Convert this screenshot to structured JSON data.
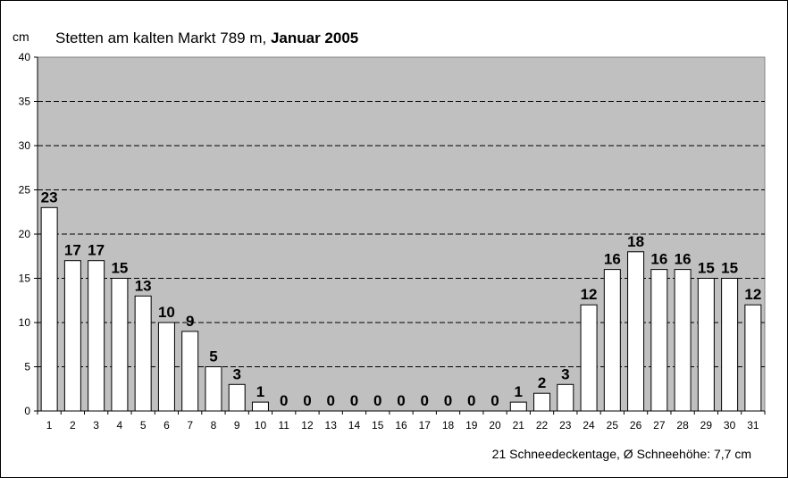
{
  "chart_data": {
    "type": "bar",
    "title": "Stetten am kalten Markt 789 m, ",
    "title_bold": "Januar 2005",
    "ylabel": "cm",
    "xlabel": "",
    "ylim": [
      0,
      40
    ],
    "yticks": [
      0,
      5,
      10,
      15,
      20,
      25,
      30,
      35,
      40
    ],
    "grid": "horizontal dashed",
    "categories": [
      "1",
      "2",
      "3",
      "4",
      "5",
      "6",
      "7",
      "8",
      "9",
      "10",
      "11",
      "12",
      "13",
      "14",
      "15",
      "16",
      "17",
      "18",
      "19",
      "20",
      "21",
      "22",
      "23",
      "24",
      "25",
      "26",
      "27",
      "28",
      "29",
      "30",
      "31"
    ],
    "values": [
      23,
      17,
      17,
      15,
      13,
      10,
      9,
      5,
      3,
      1,
      0,
      0,
      0,
      0,
      0,
      0,
      0,
      0,
      0,
      0,
      1,
      2,
      3,
      12,
      16,
      18,
      16,
      16,
      15,
      15,
      12
    ],
    "annotation": "21 Schneedeckentage,  Ø Schneehöhe:  7,7 cm",
    "colors": {
      "plot_bg": "#c0c0c0",
      "bar": "#ffffff",
      "outline": "#000000"
    }
  }
}
